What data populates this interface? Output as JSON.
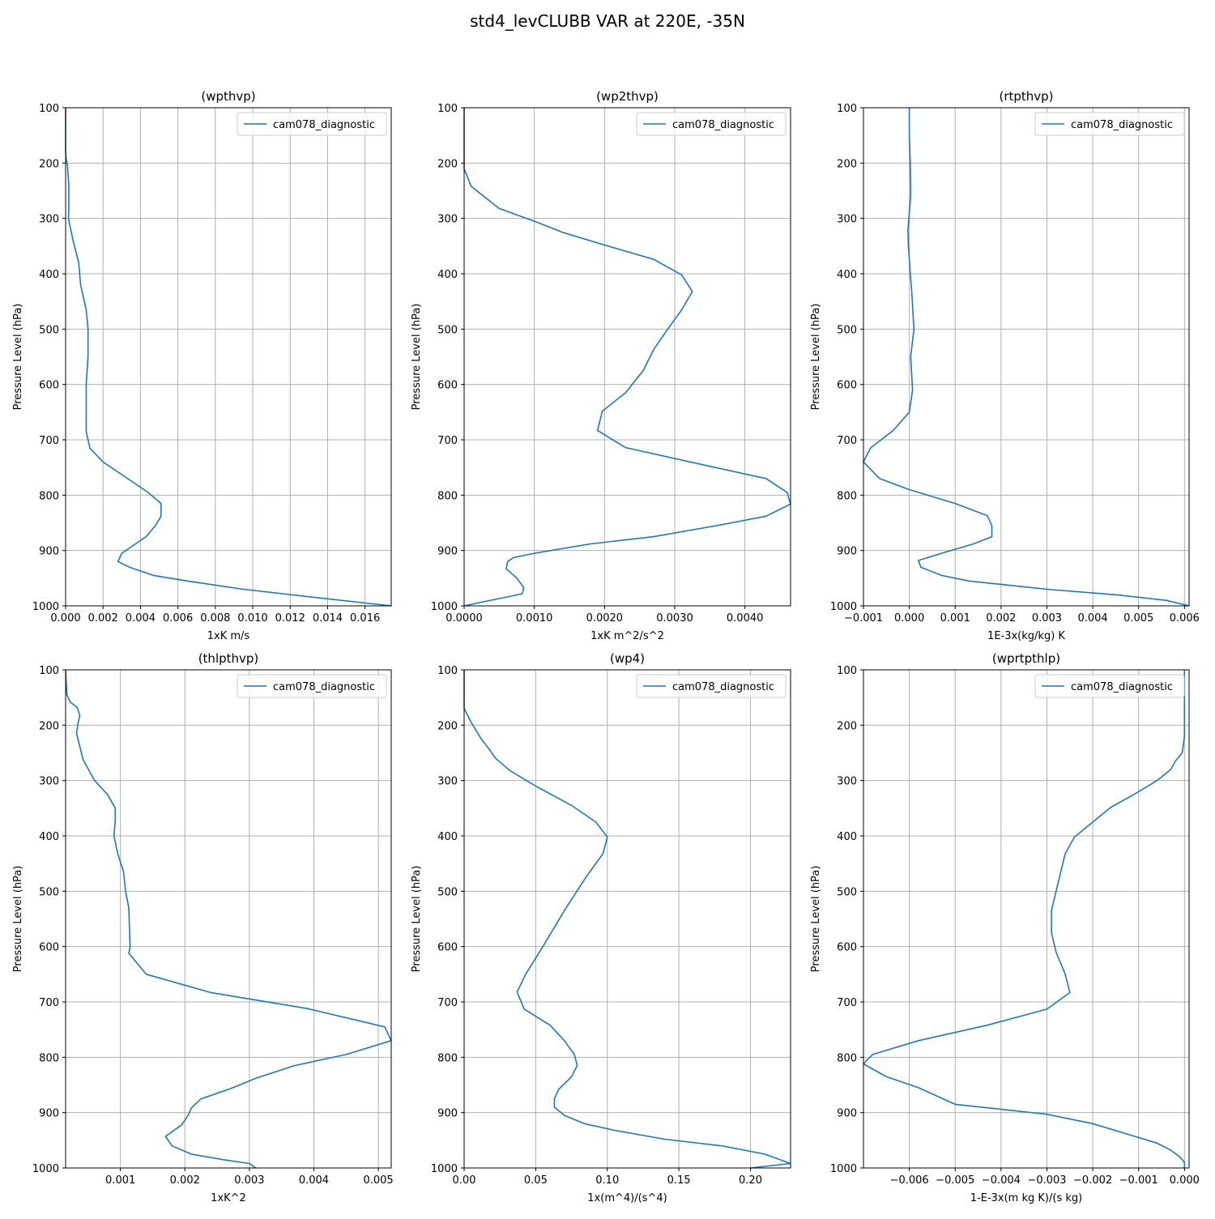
{
  "figure": {
    "title": "std4_levCLUBB VAR at 220E, -35N"
  },
  "colors": {
    "series": "#1f77b4",
    "grid": "#b0b0b0",
    "axis": "#000000"
  },
  "chart_data": [
    {
      "type": "line",
      "title": "(wpthvp)",
      "xlabel": "1xK m/s",
      "ylabel": "Pressure Level (hPa)",
      "xlim": [
        0,
        0.0174
      ],
      "ylim": [
        1000,
        100
      ],
      "xticks": [
        0,
        0.002,
        0.004,
        0.006,
        0.008,
        0.01,
        0.012,
        0.014,
        0.016
      ],
      "xtick_labels": [
        "0.000",
        "0.002",
        "0.004",
        "0.006",
        "0.008",
        "0.010",
        "0.012",
        "0.014",
        "0.016"
      ],
      "yticks": [
        100,
        200,
        300,
        400,
        500,
        600,
        700,
        800,
        900,
        1000
      ],
      "grid": true,
      "legend": "upper right",
      "series": [
        {
          "name": "cam078_diagnostic",
          "x": [
            0.0,
            0.0,
            0.0,
            2e-05,
            0.0001,
            0.00017,
            0.00017,
            0.00017,
            0.00015,
            0.0004,
            0.0007,
            0.0008,
            0.0011,
            0.0012,
            0.0012,
            0.0011,
            0.0011,
            0.0011,
            0.0013,
            0.002,
            0.0044,
            0.0051,
            0.0051,
            0.0048,
            0.0043,
            0.003,
            0.0028,
            0.0034,
            0.0047,
            0.0065,
            0.0095,
            0.0134,
            0.0174
          ],
          "y": [
            100,
            150,
            180,
            190,
            205,
            240,
            260,
            282,
            300,
            340,
            380,
            420,
            465,
            500,
            550,
            600,
            650,
            685,
            715,
            740,
            795,
            815,
            838,
            855,
            875,
            905,
            920,
            930,
            945,
            955,
            970,
            985,
            1000
          ]
        }
      ]
    },
    {
      "type": "line",
      "title": "(wp2thvp)",
      "xlabel": "1xK m^2/s^2",
      "ylabel": "Pressure Level (hPa)",
      "xlim": [
        0,
        0.00465
      ],
      "ylim": [
        1000,
        100
      ],
      "xticks": [
        0,
        0.001,
        0.002,
        0.003,
        0.004
      ],
      "xtick_labels": [
        "0.0000",
        "0.0010",
        "0.0020",
        "0.0030",
        "0.0040"
      ],
      "yticks": [
        100,
        200,
        300,
        400,
        500,
        600,
        700,
        800,
        900,
        1000
      ],
      "grid": true,
      "legend": "upper right",
      "series": [
        {
          "name": "cam078_diagnostic",
          "x": [
            0.0,
            0.0,
            0.0001,
            0.0003,
            0.0005,
            0.001,
            0.0014,
            0.002,
            0.0027,
            0.0031,
            0.00325,
            0.0031,
            0.0029,
            0.0027,
            0.00255,
            0.0023,
            0.00197,
            0.0019,
            0.0023,
            0.0034,
            0.0043,
            0.0046,
            0.00465,
            0.0043,
            0.0036,
            0.0027,
            0.0018,
            0.001,
            0.0007,
            0.00062,
            0.0006,
            0.00075,
            0.00085,
            0.00083,
            0.00065,
            0.0003,
            0.0
          ],
          "y": [
            100,
            210,
            242,
            262,
            282,
            305,
            325,
            348,
            374,
            402,
            432,
            465,
            500,
            537,
            575,
            615,
            648,
            683,
            714,
            745,
            770,
            795,
            816,
            838,
            855,
            875,
            888,
            905,
            913,
            920,
            933,
            950,
            967,
            978,
            983,
            992,
            1000
          ]
        }
      ]
    },
    {
      "type": "line",
      "title": "(rtpthvp)",
      "xlabel": "1E-3x(kg/kg) K",
      "ylabel": "Pressure Level (hPa)",
      "xlim": [
        -0.001,
        0.0061
      ],
      "ylim": [
        1000,
        100
      ],
      "xticks": [
        -0.001,
        0.0,
        0.001,
        0.002,
        0.003,
        0.004,
        0.005,
        0.006
      ],
      "xtick_labels": [
        "−0.001",
        "0.000",
        "0.001",
        "0.002",
        "0.003",
        "0.004",
        "0.005",
        "0.006"
      ],
      "yticks": [
        100,
        200,
        300,
        400,
        500,
        600,
        700,
        800,
        900,
        1000
      ],
      "grid": true,
      "legend": "upper right",
      "series": [
        {
          "name": "cam078_diagnostic",
          "x": [
            0.0,
            0.0,
            2e-05,
            3e-05,
            3e-05,
            0.0,
            -3e-05,
            -2e-05,
            2e-05,
            5e-05,
            0.0001,
            3e-05,
            7e-05,
            0.0,
            -0.00035,
            -0.00085,
            -0.001,
            -0.00065,
            0.0,
            0.001,
            0.0017,
            0.0018,
            0.0018,
            0.0014,
            0.0007,
            0.0002,
            0.00025,
            0.0007,
            0.0013,
            0.003,
            0.0045,
            0.0056,
            0.0061
          ],
          "y": [
            100,
            150,
            200,
            240,
            260,
            290,
            320,
            350,
            400,
            430,
            500,
            550,
            610,
            650,
            683,
            715,
            740,
            770,
            790,
            815,
            837,
            855,
            875,
            888,
            905,
            918,
            930,
            945,
            955,
            970,
            980,
            990,
            1000
          ]
        }
      ]
    },
    {
      "type": "line",
      "title": "(thlpthvp)",
      "xlabel": "1xK^2",
      "ylabel": "Pressure Level (hPa)",
      "xlim": [
        0.00015,
        0.0052
      ],
      "ylim": [
        1000,
        100
      ],
      "xticks": [
        0.001,
        0.002,
        0.003,
        0.004,
        0.005
      ],
      "xtick_labels": [
        "0.001",
        "0.002",
        "0.003",
        "0.004",
        "0.005"
      ],
      "yticks": [
        100,
        200,
        300,
        400,
        500,
        600,
        700,
        800,
        900,
        1000
      ],
      "grid": true,
      "legend": "upper right",
      "series": [
        {
          "name": "cam078_diagnostic",
          "x": [
            0.00015,
            0.00017,
            0.00022,
            0.00033,
            0.00037,
            0.00034,
            0.00032,
            0.00038,
            0.00042,
            0.0006,
            0.0008,
            0.00092,
            0.00092,
            0.0009,
            0.00096,
            0.00105,
            0.00108,
            0.00113,
            0.00115,
            0.00113,
            0.0014,
            0.0024,
            0.0039,
            0.0051,
            0.0052,
            0.0045,
            0.0037,
            0.0031,
            0.0027,
            0.00225,
            0.0021,
            0.00205,
            0.00195,
            0.0017,
            0.0018,
            0.0021,
            0.0026,
            0.003,
            0.0031
          ],
          "y": [
            100,
            145,
            158,
            168,
            182,
            198,
            215,
            243,
            262,
            300,
            325,
            350,
            372,
            400,
            433,
            465,
            500,
            530,
            600,
            612,
            650,
            683,
            712,
            745,
            770,
            795,
            815,
            838,
            857,
            875,
            892,
            905,
            922,
            943,
            960,
            975,
            985,
            992,
            1000
          ]
        }
      ]
    },
    {
      "type": "line",
      "title": "(wp4)",
      "xlabel": "1x(m^4)/(s^4)",
      "ylabel": "Pressure Level (hPa)",
      "xlim": [
        0,
        0.228
      ],
      "ylim": [
        1000,
        100
      ],
      "xticks": [
        0,
        0.05,
        0.1,
        0.15,
        0.2
      ],
      "xtick_labels": [
        "0.00",
        "0.05",
        "0.10",
        "0.15",
        "0.20"
      ],
      "yticks": [
        100,
        200,
        300,
        400,
        500,
        600,
        700,
        800,
        900,
        1000
      ],
      "grid": true,
      "legend": "upper right",
      "series": [
        {
          "name": "cam078_diagnostic",
          "x": [
            0.0,
            0.0,
            0.0,
            0.005,
            0.012,
            0.018,
            0.022,
            0.032,
            0.05,
            0.075,
            0.092,
            0.1,
            0.097,
            0.085,
            0.07,
            0.055,
            0.043,
            0.037,
            0.042,
            0.06,
            0.07,
            0.077,
            0.079,
            0.075,
            0.066,
            0.063,
            0.063,
            0.07,
            0.084,
            0.105,
            0.14,
            0.18,
            0.21,
            0.228,
            0.2
          ],
          "y": [
            100,
            145,
            170,
            195,
            225,
            245,
            260,
            282,
            310,
            345,
            375,
            402,
            432,
            475,
            535,
            600,
            650,
            682,
            713,
            742,
            770,
            795,
            815,
            835,
            858,
            875,
            890,
            905,
            920,
            932,
            948,
            960,
            975,
            992,
            1000
          ]
        }
      ]
    },
    {
      "type": "line",
      "title": "(wprtpthlp)",
      "xlabel": "1-E-3x(m kg K)/(s kg)",
      "ylabel": "Pressure Level (hPa)",
      "xlim": [
        -0.007,
        0.0001
      ],
      "ylim": [
        1000,
        100
      ],
      "xticks": [
        -0.006,
        -0.005,
        -0.004,
        -0.003,
        -0.002,
        -0.001,
        0.0
      ],
      "xtick_labels": [
        "−0.006",
        "−0.005",
        "−0.004",
        "−0.003",
        "−0.002",
        "−0.001",
        "0.000"
      ],
      "yticks": [
        100,
        200,
        300,
        400,
        500,
        600,
        700,
        800,
        900,
        1000
      ],
      "grid": true,
      "legend": "upper right",
      "series": [
        {
          "name": "cam078_diagnostic",
          "x": [
            0.0,
            0.0,
            0.0,
            -5e-05,
            -0.0002,
            -0.0003,
            -0.0006,
            -0.0011,
            -0.0016,
            -0.002,
            -0.0024,
            -0.0026,
            -0.0028,
            -0.0029,
            -0.0029,
            -0.0028,
            -0.0026,
            -0.0025,
            -0.003,
            -0.0043,
            -0.0058,
            -0.0068,
            -0.007,
            -0.0065,
            -0.0058,
            -0.005,
            -0.003,
            -0.002,
            -0.0012,
            -0.0006,
            -0.0003,
            -0.0001,
            0.0,
            0.0
          ],
          "y": [
            100,
            150,
            220,
            250,
            265,
            280,
            300,
            325,
            348,
            375,
            402,
            432,
            500,
            535,
            575,
            610,
            650,
            683,
            713,
            742,
            770,
            795,
            812,
            835,
            855,
            885,
            903,
            920,
            940,
            955,
            968,
            980,
            990,
            1000
          ]
        }
      ]
    }
  ]
}
